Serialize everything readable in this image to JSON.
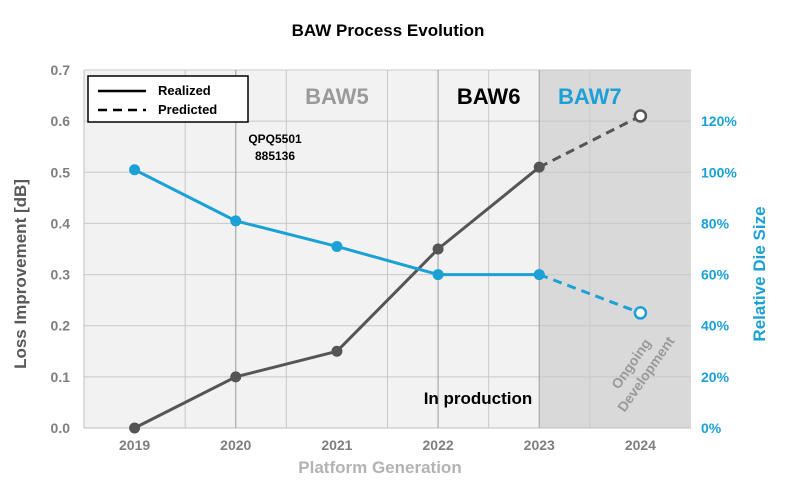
{
  "chart_data": {
    "type": "line",
    "title": "BAW Process Evolution",
    "xlabel": "Platform Generation",
    "ylabel_left": "Loss Improvement [dB]",
    "ylabel_right": "Relative Die Size",
    "categories": [
      "2019",
      "2020",
      "2021",
      "2022",
      "2023",
      "2024"
    ],
    "ylim_left": [
      0,
      0.7
    ],
    "yticks_left": [
      "0.0",
      "0.1",
      "0.2",
      "0.3",
      "0.4",
      "0.5",
      "0.6",
      "0.7"
    ],
    "ylim_right": [
      0,
      140
    ],
    "yticks_right": [
      "0%",
      "20%",
      "40%",
      "60%",
      "80%",
      "100%",
      "120%"
    ],
    "grid": true,
    "legend_position": "top-left",
    "legend": [
      {
        "label": "Realized",
        "style": "solid"
      },
      {
        "label": "Predicted",
        "style": "dashed"
      }
    ],
    "series": [
      {
        "axis": "left",
        "color": "#555555",
        "realized": [
          0.0,
          0.1,
          0.15,
          0.35,
          0.51
        ],
        "predicted_from_index": 4,
        "predicted": [
          0.51,
          0.61
        ]
      },
      {
        "axis": "right",
        "color": "#1ba1d6",
        "realized": [
          101,
          81,
          71,
          60,
          60
        ],
        "predicted_from_index": 4,
        "predicted": [
          60,
          45
        ]
      }
    ],
    "bands": [
      {
        "label": "BAW5",
        "color": "#9a9a9a",
        "from": 1.5,
        "to": 3.5
      },
      {
        "label": "BAW6",
        "color": "#000000",
        "from": 3.5,
        "to": 4.5
      },
      {
        "label": "BAW7",
        "color": "#1ba1d6",
        "from": 4.5,
        "to": 5.5
      }
    ],
    "annotations": {
      "product_line1": "QPQ5501",
      "product_line2": "885136",
      "in_production": "In production",
      "dev_line1": "Ongoing",
      "dev_line2": "Development"
    }
  }
}
